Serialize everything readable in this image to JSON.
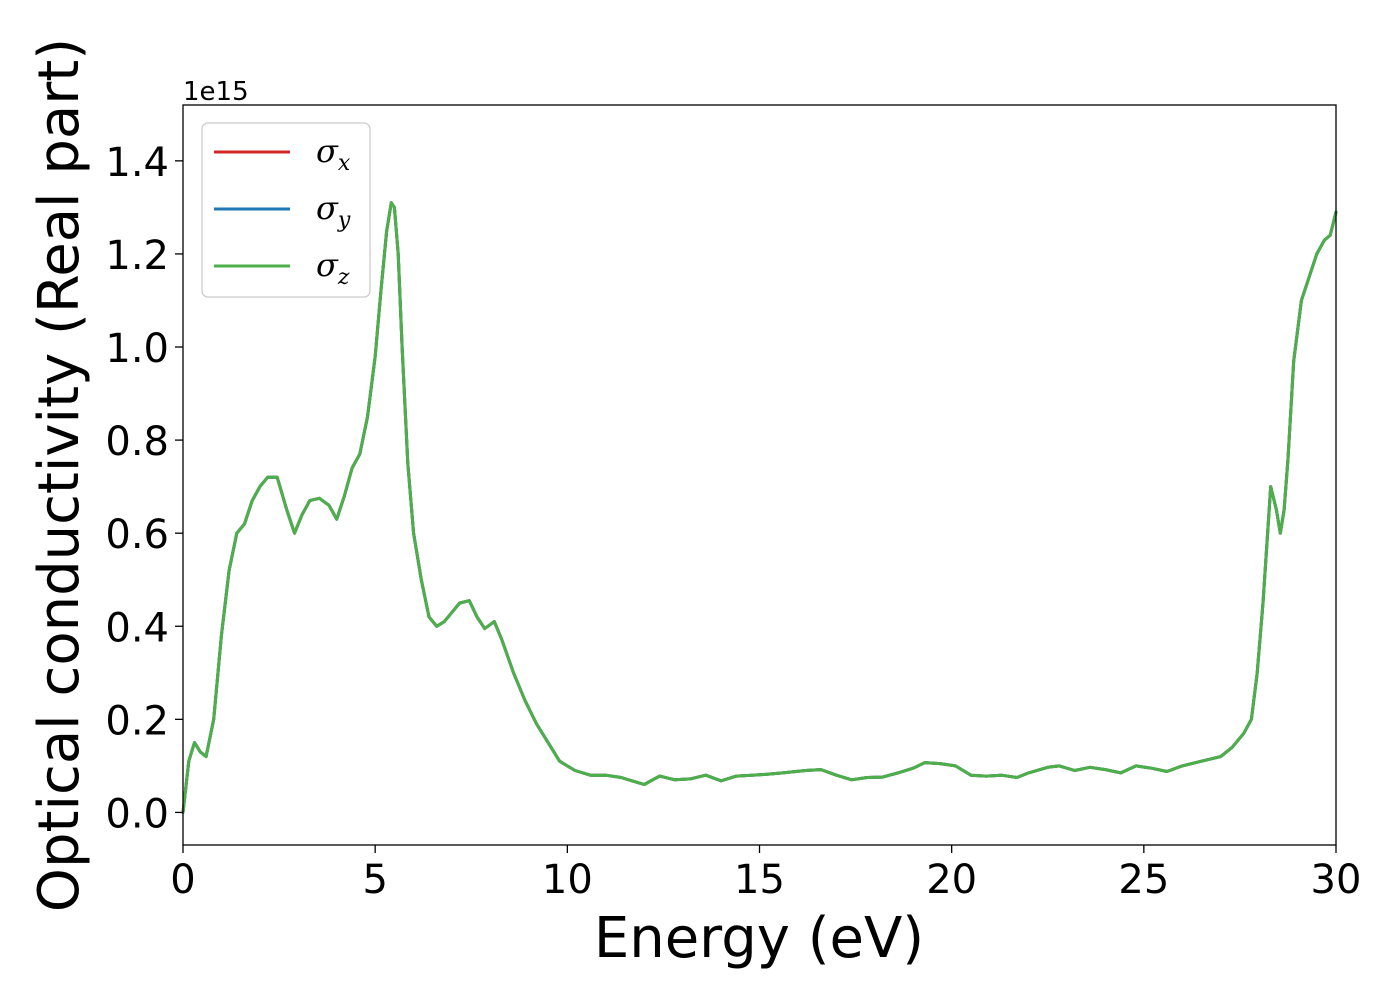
{
  "chart_data": {
    "type": "line",
    "title": "",
    "xlabel": "Energy (eV)",
    "ylabel": "Optical conductivity (Real part)",
    "y_offset_label": "1e15",
    "y_scale_factor": 1000000000000000.0,
    "xlim": [
      0,
      30
    ],
    "ylim": [
      -0.07,
      1.52
    ],
    "xticks": [
      0,
      5,
      10,
      15,
      20,
      25,
      30
    ],
    "xtick_labels": [
      "0",
      "5",
      "10",
      "15",
      "20",
      "25",
      "30"
    ],
    "yticks": [
      0.0,
      0.2,
      0.4,
      0.6,
      0.8,
      1.0,
      1.2,
      1.4
    ],
    "ytick_labels": [
      "0.0",
      "0.2",
      "0.4",
      "0.6",
      "0.8",
      "1.0",
      "1.2",
      "1.4"
    ],
    "grid": false,
    "legend_position": "top-left",
    "x": [
      0,
      0.15,
      0.3,
      0.45,
      0.6,
      0.8,
      1.0,
      1.2,
      1.4,
      1.6,
      1.8,
      2.0,
      2.2,
      2.45,
      2.7,
      2.9,
      3.1,
      3.3,
      3.55,
      3.8,
      4.0,
      4.2,
      4.4,
      4.6,
      4.8,
      5.0,
      5.15,
      5.3,
      5.42,
      5.5,
      5.6,
      5.7,
      5.85,
      6.0,
      6.2,
      6.4,
      6.6,
      6.8,
      7.0,
      7.2,
      7.45,
      7.65,
      7.85,
      8.1,
      8.3,
      8.6,
      8.9,
      9.2,
      9.5,
      9.8,
      10.0,
      10.2,
      10.6,
      11.0,
      11.4,
      11.8,
      12.0,
      12.4,
      12.8,
      13.2,
      13.6,
      14.0,
      14.4,
      14.8,
      15.2,
      15.6,
      16.2,
      16.6,
      17.0,
      17.4,
      17.8,
      18.2,
      18.6,
      19.0,
      19.3,
      19.7,
      20.1,
      20.5,
      20.9,
      21.3,
      21.7,
      22.0,
      22.5,
      22.8,
      23.2,
      23.6,
      24.0,
      24.4,
      24.8,
      25.2,
      25.6,
      26.0,
      26.5,
      27.0,
      27.3,
      27.6,
      27.8,
      27.95,
      28.1,
      28.3,
      28.45,
      28.55,
      28.65,
      28.75,
      28.9,
      29.1,
      29.3,
      29.5,
      29.7,
      29.85,
      30.0
    ],
    "series": [
      {
        "name": "σx",
        "label_base": "σ",
        "label_sub": "x",
        "color": "#d62728",
        "values": [
          0.0,
          0.11,
          0.15,
          0.13,
          0.12,
          0.2,
          0.38,
          0.52,
          0.6,
          0.62,
          0.67,
          0.7,
          0.72,
          0.72,
          0.65,
          0.6,
          0.64,
          0.67,
          0.675,
          0.66,
          0.63,
          0.68,
          0.74,
          0.77,
          0.85,
          0.98,
          1.12,
          1.25,
          1.31,
          1.3,
          1.2,
          1.0,
          0.75,
          0.6,
          0.5,
          0.42,
          0.4,
          0.41,
          0.43,
          0.45,
          0.455,
          0.42,
          0.395,
          0.41,
          0.37,
          0.3,
          0.24,
          0.19,
          0.15,
          0.11,
          0.1,
          0.09,
          0.08,
          0.08,
          0.075,
          0.065,
          0.06,
          0.078,
          0.07,
          0.072,
          0.08,
          0.068,
          0.078,
          0.08,
          0.082,
          0.085,
          0.09,
          0.092,
          0.08,
          0.07,
          0.075,
          0.076,
          0.085,
          0.095,
          0.107,
          0.105,
          0.1,
          0.08,
          0.078,
          0.08,
          0.075,
          0.085,
          0.097,
          0.1,
          0.09,
          0.097,
          0.092,
          0.085,
          0.1,
          0.095,
          0.088,
          0.1,
          0.11,
          0.12,
          0.14,
          0.17,
          0.2,
          0.3,
          0.45,
          0.7,
          0.65,
          0.6,
          0.65,
          0.76,
          0.97,
          1.1,
          1.15,
          1.2,
          1.23,
          1.24,
          1.29
        ]
      },
      {
        "name": "σy",
        "label_base": "σ",
        "label_sub": "y",
        "color": "#1f77b4",
        "values": [
          0.0,
          0.11,
          0.15,
          0.13,
          0.12,
          0.2,
          0.38,
          0.52,
          0.6,
          0.62,
          0.67,
          0.7,
          0.72,
          0.72,
          0.65,
          0.6,
          0.64,
          0.67,
          0.675,
          0.66,
          0.63,
          0.68,
          0.74,
          0.77,
          0.85,
          0.98,
          1.12,
          1.25,
          1.31,
          1.3,
          1.2,
          1.0,
          0.75,
          0.6,
          0.5,
          0.42,
          0.4,
          0.41,
          0.43,
          0.45,
          0.455,
          0.42,
          0.395,
          0.41,
          0.37,
          0.3,
          0.24,
          0.19,
          0.15,
          0.11,
          0.1,
          0.09,
          0.08,
          0.08,
          0.075,
          0.065,
          0.06,
          0.078,
          0.07,
          0.072,
          0.08,
          0.068,
          0.078,
          0.08,
          0.082,
          0.085,
          0.09,
          0.092,
          0.08,
          0.07,
          0.075,
          0.076,
          0.085,
          0.095,
          0.107,
          0.105,
          0.1,
          0.08,
          0.078,
          0.08,
          0.075,
          0.085,
          0.097,
          0.1,
          0.09,
          0.097,
          0.092,
          0.085,
          0.1,
          0.095,
          0.088,
          0.1,
          0.11,
          0.12,
          0.14,
          0.17,
          0.2,
          0.3,
          0.45,
          0.7,
          0.65,
          0.6,
          0.65,
          0.76,
          0.97,
          1.1,
          1.15,
          1.2,
          1.23,
          1.24,
          1.29
        ]
      },
      {
        "name": "σz",
        "label_base": "σ",
        "label_sub": "z",
        "color": "#4daf4a",
        "values": [
          0.0,
          0.11,
          0.15,
          0.13,
          0.12,
          0.2,
          0.38,
          0.52,
          0.6,
          0.62,
          0.67,
          0.7,
          0.72,
          0.72,
          0.65,
          0.6,
          0.64,
          0.67,
          0.675,
          0.66,
          0.63,
          0.68,
          0.74,
          0.77,
          0.85,
          0.98,
          1.12,
          1.25,
          1.31,
          1.3,
          1.2,
          1.0,
          0.75,
          0.6,
          0.5,
          0.42,
          0.4,
          0.41,
          0.43,
          0.45,
          0.455,
          0.42,
          0.395,
          0.41,
          0.37,
          0.3,
          0.24,
          0.19,
          0.15,
          0.11,
          0.1,
          0.09,
          0.08,
          0.08,
          0.075,
          0.065,
          0.06,
          0.078,
          0.07,
          0.072,
          0.08,
          0.068,
          0.078,
          0.08,
          0.082,
          0.085,
          0.09,
          0.092,
          0.08,
          0.07,
          0.075,
          0.076,
          0.085,
          0.095,
          0.107,
          0.105,
          0.1,
          0.08,
          0.078,
          0.08,
          0.075,
          0.085,
          0.097,
          0.1,
          0.09,
          0.097,
          0.092,
          0.085,
          0.1,
          0.095,
          0.088,
          0.1,
          0.11,
          0.12,
          0.14,
          0.17,
          0.2,
          0.3,
          0.45,
          0.7,
          0.65,
          0.6,
          0.65,
          0.76,
          0.97,
          1.1,
          1.15,
          1.2,
          1.23,
          1.24,
          1.29
        ]
      }
    ]
  }
}
